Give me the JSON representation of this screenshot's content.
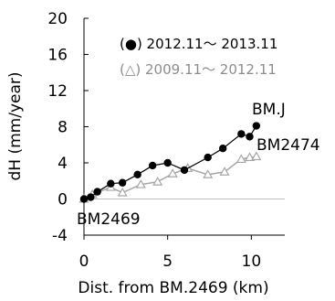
{
  "chart_data": {
    "type": "line",
    "xlabel": "Dist. from BM.2469 (km)",
    "ylabel": "dH (mm/year)",
    "xlim": [
      0,
      12
    ],
    "ylim": [
      -4,
      20
    ],
    "xticks": [
      {
        "v": 0,
        "label": "0"
      },
      {
        "v": 5,
        "label": "5"
      },
      {
        "v": 10,
        "label": "10"
      }
    ],
    "yticks": [
      {
        "v": -4,
        "label": "-4"
      },
      {
        "v": 0,
        "label": "0"
      },
      {
        "v": 4,
        "label": "4"
      },
      {
        "v": 8,
        "label": "8"
      },
      {
        "v": 12,
        "label": "12"
      },
      {
        "v": 16,
        "label": "16"
      },
      {
        "v": 20,
        "label": "20"
      }
    ],
    "grid": false,
    "legend_position": "top",
    "series": [
      {
        "name": "2012.11～ 2013.11",
        "legend_label": "(●) 2012.11～ 2013.11",
        "marker": "filled-circle",
        "color": "#000000",
        "x": [
          0.0,
          0.4,
          0.8,
          1.6,
          2.3,
          3.2,
          4.1,
          5.0,
          6.0,
          7.4,
          8.3,
          9.4,
          9.9,
          10.3
        ],
        "y": [
          0.0,
          0.2,
          0.8,
          1.7,
          1.8,
          2.7,
          3.7,
          4.0,
          3.2,
          4.6,
          5.6,
          7.2,
          6.9,
          8.1
        ]
      },
      {
        "name": "2009.11～ 2012.11",
        "legend_label": "(△) 2009.11～ 2012.11",
        "marker": "open-triangle",
        "color": "#a6a6a6",
        "x": [
          0.0,
          0.5,
          1.6,
          2.3,
          3.4,
          4.4,
          5.3,
          6.2,
          7.4,
          8.4,
          9.4,
          9.9,
          10.3
        ],
        "y": [
          0.0,
          0.5,
          1.3,
          0.7,
          1.6,
          1.9,
          2.8,
          3.4,
          2.7,
          3.0,
          4.4,
          4.6,
          4.7
        ]
      }
    ],
    "zero_line": {
      "y": 0,
      "color": "#bfbfbf"
    },
    "annotations": [
      {
        "text": "BM.J",
        "x": 10.3,
        "y": 8.1
      },
      {
        "text": "BM2474",
        "x": 10.3,
        "y": 4.7
      },
      {
        "text": "BM2469",
        "x": 0.0,
        "y": 0.0
      }
    ]
  }
}
